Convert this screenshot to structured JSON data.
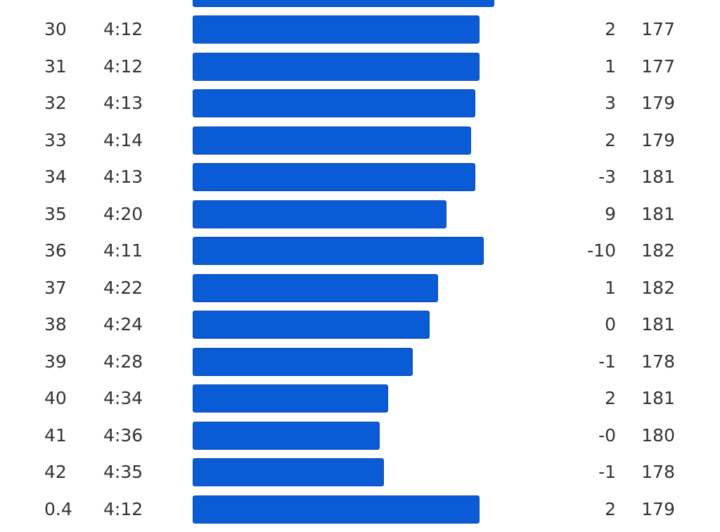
{
  "table": {
    "rows": [
      [
        "30",
        "4:12",
        "2",
        "177"
      ],
      [
        "31",
        "4:12",
        "1",
        "177"
      ],
      [
        "32",
        "4:13",
        "3",
        "179"
      ],
      [
        "33",
        "4:14",
        "2",
        "179"
      ],
      [
        "34",
        "4:13",
        "-3",
        "181"
      ],
      [
        "35",
        "4:20",
        "9",
        "181"
      ],
      [
        "36",
        "4:11",
        "-10",
        "182"
      ],
      [
        "37",
        "4:22",
        "1",
        "182"
      ],
      [
        "38",
        "4:24",
        "0",
        "181"
      ],
      [
        "39",
        "4:28",
        "-1",
        "178"
      ],
      [
        "40",
        "4:34",
        "2",
        "181"
      ],
      [
        "41",
        "4:36",
        "-0",
        "180"
      ],
      [
        "42",
        "4:35",
        "-1",
        "178"
      ],
      [
        "0.4",
        "4:12",
        "2",
        "179"
      ]
    ]
  }
}
